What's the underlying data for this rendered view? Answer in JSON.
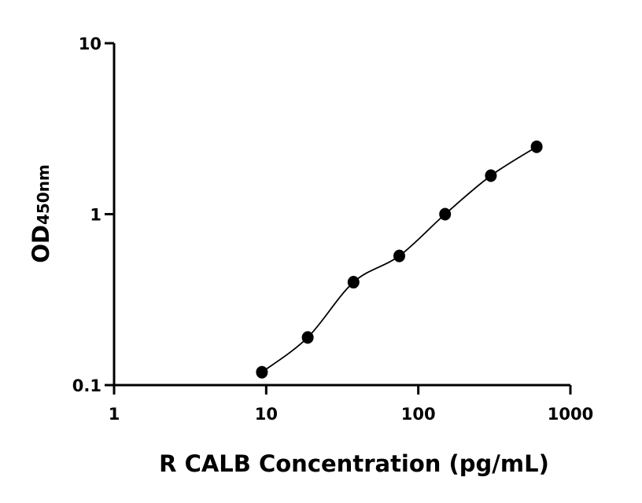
{
  "chart_data": {
    "type": "scatter",
    "xlabel": "R CALB Concentration (pg/mL)",
    "ylabel": "OD",
    "ylabel_subscript": "450nm",
    "x": [
      9.375,
      18.75,
      37.5,
      75,
      150,
      300,
      600
    ],
    "series": [
      {
        "values": [
          0.119,
          0.19,
          0.4,
          0.57,
          1.0,
          1.68,
          2.48
        ],
        "color": "#000000"
      }
    ],
    "xlim": [
      1,
      1000
    ],
    "xticks": [
      1,
      10,
      100,
      1000
    ],
    "xscale": "log",
    "ylim": [
      0.1,
      10
    ],
    "yticks": [
      0.1,
      1,
      10
    ],
    "yscale": "log",
    "fit_line": true
  }
}
